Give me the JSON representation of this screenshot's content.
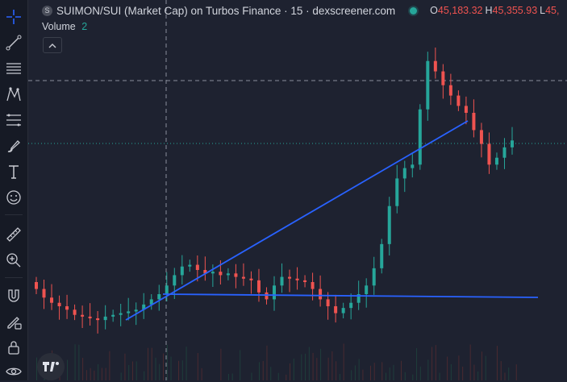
{
  "header": {
    "symbol_badge": "S",
    "title": "SUIMON/SUI (Market Cap) on Turbos Finance · 15 · dexscreener.com",
    "open_label": "O",
    "open_value": "45,183.32",
    "high_label": "H",
    "high_value": "45,355.93",
    "low_label": "L",
    "low_value": "45,"
  },
  "volume": {
    "label": "Volume",
    "value": "2"
  },
  "collapse_glyph": "^",
  "toolbar": [
    "crosshair-icon",
    "trend-line-icon",
    "horizontal-lines-icon",
    "pattern-icon",
    "fib-icon",
    "brush-icon",
    "text-icon",
    "emoji-icon",
    "ruler-icon",
    "zoom-in-icon",
    "magnet-icon",
    "lock-drawing-icon",
    "lock-icon",
    "eye-icon"
  ],
  "colors": {
    "background": "#1e2230",
    "up": "#26a69a",
    "down": "#ef5350",
    "drawing": "#2962ff"
  },
  "chart_data": {
    "type": "candlestick",
    "symbol": "SUIMON/SUI",
    "interval": "15",
    "note_series": "approximate close prices (market cap) left to right",
    "close": [
      40600,
      40350,
      40200,
      40100,
      40000,
      39850,
      39800,
      39750,
      39700,
      39800,
      39850,
      39900,
      39950,
      40000,
      40150,
      40300,
      40450,
      40700,
      41000,
      41250,
      41300,
      41150,
      41050,
      41100,
      41000,
      41050,
      40950,
      40900,
      40850,
      40500,
      40300,
      40700,
      40950,
      40900,
      40850,
      40800,
      40600,
      40300,
      40100,
      39900,
      40050,
      40200,
      40450,
      40700,
      41200,
      41900,
      43000,
      43800,
      44100,
      44200,
      45800,
      47200,
      46900,
      46500,
      46200,
      45900,
      45700,
      45200,
      44800,
      44200,
      44400,
      44700,
      44900
    ]
  }
}
